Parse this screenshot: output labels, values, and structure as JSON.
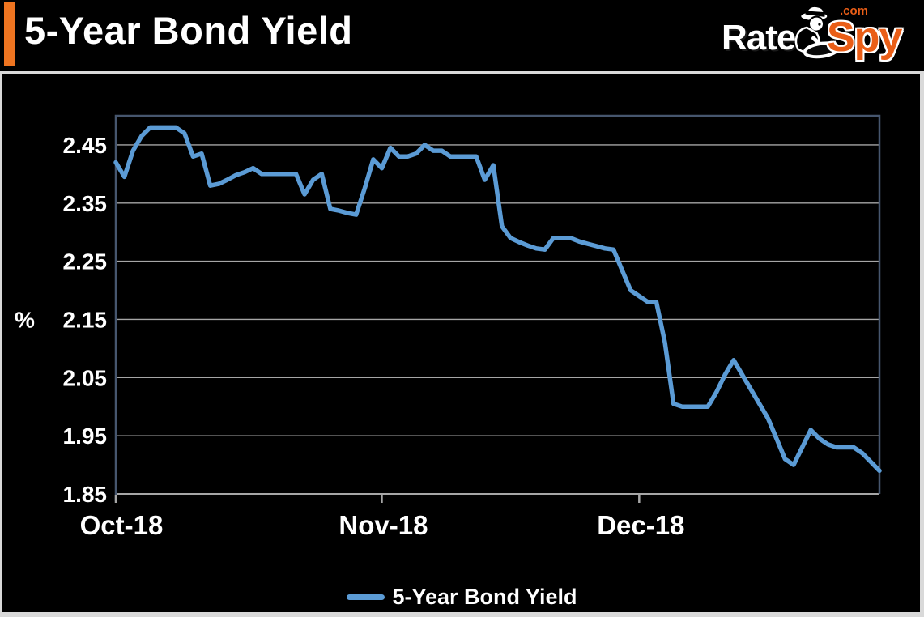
{
  "header": {
    "title": "5-Year Bond Yield",
    "logo": {
      "rate": "Rate",
      "spy": "Spy",
      "dot_com": ".com"
    }
  },
  "legend": {
    "label": "5-Year Bond Yield"
  },
  "colors": {
    "background": "#000000",
    "accent_orange": "#EE7420",
    "logo_orange": "#EA5E17",
    "line_blue": "#5B9BD5",
    "gridline_gray": "#A6A6A6",
    "plot_border_slate": "#46566E",
    "panel_border_gray": "#D9D9D9",
    "text_white": "#FFFFFF"
  },
  "chart_data": {
    "type": "line",
    "title": "5-Year Bond Yield",
    "xlabel": "",
    "ylabel": "%",
    "ylim": [
      1.85,
      2.5
    ],
    "grid": "horizontal",
    "legend_position": "bottom-center",
    "frequency": "daily",
    "x_start": "Oct 1, 2018",
    "x_end": "Dec 28, 2018",
    "y_ticks": [
      {
        "label": "2.45",
        "value": 2.45
      },
      {
        "label": "2.35",
        "value": 2.35
      },
      {
        "label": "2.25",
        "value": 2.25
      },
      {
        "label": "2.15",
        "value": 2.15
      },
      {
        "label": "2.05",
        "value": 2.05
      },
      {
        "label": "1.95",
        "value": 1.95
      },
      {
        "label": "1.85",
        "value": 1.85
      }
    ],
    "x_ticks": [
      {
        "label": "Oct-18",
        "day_index": 0
      },
      {
        "label": "Nov-18",
        "day_index": 31
      },
      {
        "label": "Dec-18",
        "day_index": 61
      }
    ],
    "series": [
      {
        "name": "5-Year Bond Yield",
        "color": "#5B9BD5",
        "values": [
          2.42,
          2.395,
          2.44,
          2.465,
          2.48,
          2.48,
          2.48,
          2.48,
          2.47,
          2.43,
          2.435,
          2.38,
          2.383,
          2.39,
          2.398,
          2.403,
          2.41,
          2.4,
          2.4,
          2.4,
          2.4,
          2.4,
          2.365,
          2.39,
          2.4,
          2.34,
          2.337,
          2.333,
          2.33,
          2.375,
          2.425,
          2.41,
          2.445,
          2.43,
          2.43,
          2.435,
          2.45,
          2.44,
          2.44,
          2.43,
          2.43,
          2.43,
          2.43,
          2.39,
          2.415,
          2.31,
          2.29,
          2.283,
          2.277,
          2.272,
          2.27,
          2.29,
          2.29,
          2.29,
          2.284,
          2.28,
          2.276,
          2.272,
          2.27,
          2.235,
          2.2,
          2.19,
          2.18,
          2.18,
          2.11,
          2.005,
          2.0,
          2.0,
          2.0,
          2.0,
          2.025,
          2.055,
          2.08,
          2.055,
          2.03,
          2.005,
          1.98,
          1.945,
          1.91,
          1.9,
          1.93,
          1.96,
          1.945,
          1.935,
          1.93,
          1.93,
          1.93,
          1.92,
          1.905,
          1.89
        ]
      }
    ]
  }
}
